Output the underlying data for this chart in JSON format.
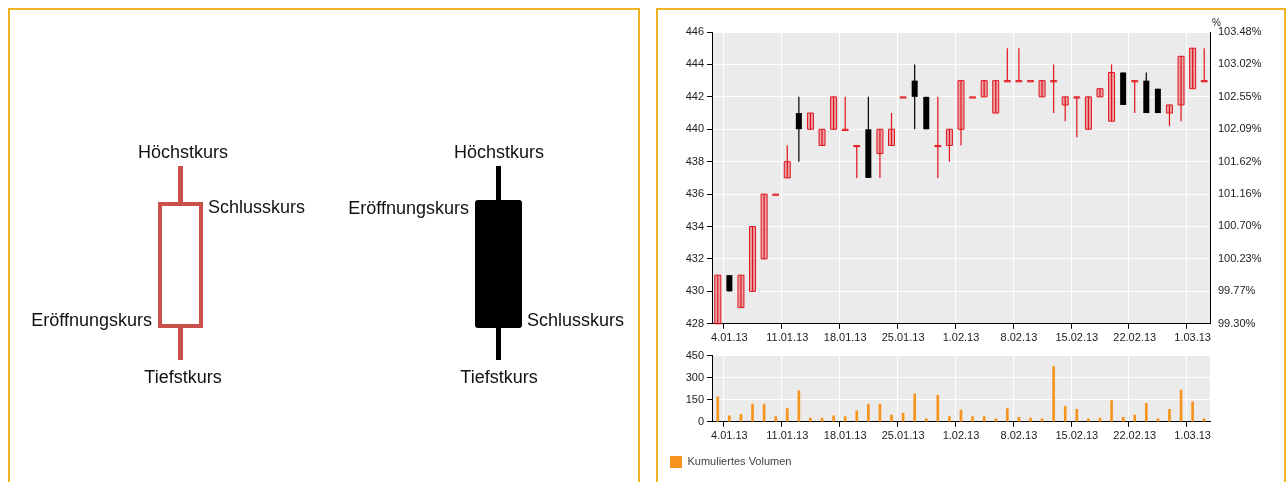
{
  "chart_data": [
    {
      "type": "other",
      "annotations": [
        "Höchstkurs",
        "Schlusskurs",
        "Eröffnungskurs",
        "Tiefstkurs",
        "Höchstkurs",
        "Eröffnungskurs",
        "Schlusskurs",
        "Tiefstkurs"
      ]
    },
    {
      "type": "candlestick",
      "categories": [
        null,
        "4.01.13",
        null,
        null,
        null,
        null,
        "11.01.13",
        null,
        null,
        null,
        null,
        "18.01.13",
        null,
        null,
        null,
        null,
        "25.01.13",
        null,
        null,
        null,
        null,
        "1.02.13",
        null,
        null,
        null,
        null,
        "8.02.13",
        null,
        null,
        null,
        null,
        "15.02.13",
        null,
        null,
        null,
        null,
        "22.02.13",
        null,
        null,
        null,
        null,
        "1.03.13",
        null
      ],
      "ohlc": [
        [
          428,
          431,
          428,
          431
        ],
        [
          431,
          431,
          430,
          430
        ],
        [
          429,
          431,
          429,
          431
        ],
        [
          430,
          434,
          430,
          434
        ],
        [
          432,
          436,
          432,
          436
        ],
        [
          436,
          436,
          436,
          436
        ],
        [
          437,
          439,
          437,
          438
        ],
        [
          441,
          442,
          438,
          440
        ],
        [
          440,
          441,
          440,
          441
        ],
        [
          439,
          440,
          439,
          440
        ],
        [
          440,
          442,
          440,
          442
        ],
        [
          440,
          442,
          440,
          440
        ],
        [
          439,
          439,
          437,
          439
        ],
        [
          440,
          442,
          437,
          437
        ],
        [
          438.5,
          440,
          437,
          440
        ],
        [
          439,
          441,
          439,
          440
        ],
        [
          442,
          442,
          442,
          442
        ],
        [
          443,
          444,
          440,
          442
        ],
        [
          442,
          442,
          440,
          440
        ],
        [
          439,
          442,
          437,
          439
        ],
        [
          439,
          440,
          438,
          440
        ],
        [
          440,
          443,
          439,
          443
        ],
        [
          442,
          442,
          442,
          442
        ],
        [
          442,
          443,
          442,
          443
        ],
        [
          441,
          443,
          441,
          443
        ],
        [
          443,
          445,
          443,
          443
        ],
        [
          443,
          445,
          443,
          443
        ],
        [
          443,
          443,
          443,
          443
        ],
        [
          442,
          443,
          442,
          443
        ],
        [
          443,
          444,
          441,
          443
        ],
        [
          441.5,
          442,
          440.5,
          442
        ],
        [
          442,
          442,
          439.5,
          442
        ],
        [
          440,
          442,
          440,
          442
        ],
        [
          442,
          442.5,
          442,
          442.5
        ],
        [
          440.5,
          444,
          440.5,
          443.5
        ],
        [
          443.5,
          443.5,
          441.5,
          441.5
        ],
        [
          443,
          443,
          441,
          443
        ],
        [
          443,
          443.5,
          441,
          441
        ],
        [
          442.5,
          442.5,
          441,
          441
        ],
        [
          441,
          441.5,
          440.2,
          441.5
        ],
        [
          441.5,
          444.5,
          440.5,
          444.5
        ],
        [
          442.5,
          445,
          442.5,
          445
        ],
        [
          443,
          445,
          443,
          443
        ]
      ],
      "colors": [
        "#e2131b",
        "#000000",
        "#e2131b",
        "#e2131b",
        "#e2131b",
        "#e2131b",
        "#e2131b",
        "#000000",
        "#e2131b",
        "#e2131b",
        "#e2131b",
        "#e2131b",
        "#e2131b",
        "#000000",
        "#e2131b",
        "#e2131b",
        "#e2131b",
        "#000000",
        "#000000",
        "#e2131b",
        "#e2131b",
        "#e2131b",
        "#e2131b",
        "#e2131b",
        "#e2131b",
        "#e2131b",
        "#e2131b",
        "#e2131b",
        "#e2131b",
        "#e2131b",
        "#e2131b",
        "#e2131b",
        "#e2131b",
        "#e2131b",
        "#e2131b",
        "#000000",
        "#e2131b",
        "#000000",
        "#000000",
        "#e2131b",
        "#e2131b",
        "#e2131b",
        "#e2131b"
      ],
      "ylim": [
        428,
        446
      ],
      "yticks": [
        428,
        430,
        432,
        434,
        436,
        438,
        440,
        442,
        444,
        446
      ],
      "y2label": "%",
      "y2lim": [
        99.3,
        103.48
      ],
      "y2ticks": [
        {
          "value": 99.3,
          "label": "99.30%"
        },
        {
          "value": 99.77,
          "label": "99.77%"
        },
        {
          "value": 100.23,
          "label": "100.23%"
        },
        {
          "value": 100.7,
          "label": "100.70%"
        },
        {
          "value": 101.16,
          "label": "101.16%"
        },
        {
          "value": 101.62,
          "label": "101.62%"
        },
        {
          "value": 102.09,
          "label": "102.09%"
        },
        {
          "value": 102.55,
          "label": "102.55%"
        },
        {
          "value": 103.02,
          "label": "103.02%"
        },
        {
          "value": 103.48,
          "label": "103.48%"
        }
      ],
      "grid": true
    },
    {
      "type": "bar",
      "categories": [
        null,
        "4.01.13",
        null,
        null,
        null,
        null,
        "11.01.13",
        null,
        null,
        null,
        null,
        "18.01.13",
        null,
        null,
        null,
        null,
        "25.01.13",
        null,
        null,
        null,
        null,
        "1.02.13",
        null,
        null,
        null,
        null,
        "8.02.13",
        null,
        null,
        null,
        null,
        "15.02.13",
        null,
        null,
        null,
        null,
        "22.02.13",
        null,
        null,
        null,
        null,
        "1.03.13",
        null
      ],
      "series": [
        {
          "name": "Kumuliertes Volumen",
          "color": "#f7941d",
          "values": [
            170,
            40,
            50,
            120,
            120,
            35,
            90,
            210,
            25,
            25,
            40,
            35,
            75,
            120,
            120,
            45,
            60,
            190,
            20,
            180,
            35,
            80,
            35,
            35,
            20,
            90,
            30,
            25,
            20,
            375,
            105,
            85,
            20,
            25,
            145,
            30,
            45,
            125,
            20,
            85,
            215,
            135,
            20
          ]
        }
      ],
      "ylim": [
        0,
        450
      ],
      "yticks": [
        0,
        150,
        300,
        450
      ],
      "grid": true,
      "legend": "bottom left"
    }
  ]
}
